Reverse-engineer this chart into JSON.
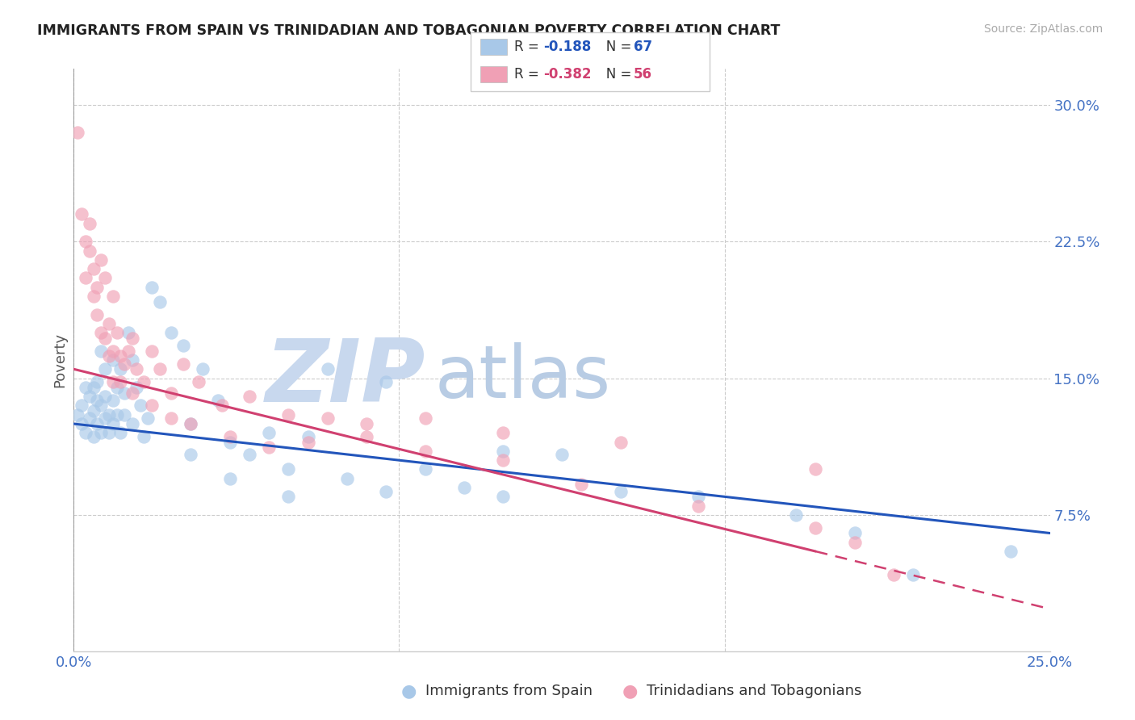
{
  "title": "IMMIGRANTS FROM SPAIN VS TRINIDADIAN AND TOBAGONIAN POVERTY CORRELATION CHART",
  "source": "Source: ZipAtlas.com",
  "ylabel": "Poverty",
  "ytick_vals": [
    0.075,
    0.15,
    0.225,
    0.3
  ],
  "ytick_labels": [
    "7.5%",
    "15.0%",
    "22.5%",
    "30.0%"
  ],
  "xtick_vals": [
    0.0,
    0.25
  ],
  "xtick_labels": [
    "0.0%",
    "25.0%"
  ],
  "xlim": [
    0.0,
    0.25
  ],
  "ylim": [
    0.0,
    0.32
  ],
  "color_blue": "#a8c8e8",
  "color_pink": "#f0a0b5",
  "line_blue": "#2255bb",
  "line_pink": "#d04070",
  "watermark_zip_color": "#c8d8ee",
  "watermark_atlas_color": "#b8cce4",
  "legend_R1": "-0.188",
  "legend_N1": "67",
  "legend_R2": "-0.382",
  "legend_N2": "56",
  "footer_label1": "Immigrants from Spain",
  "footer_label2": "Trinidadians and Tobagonians",
  "blue_line_x0": 0.0,
  "blue_line_y0": 0.125,
  "blue_line_x1": 0.25,
  "blue_line_y1": 0.065,
  "pink_line_x0": 0.0,
  "pink_line_y0": 0.155,
  "pink_line_x1": 0.19,
  "pink_line_y1": 0.055,
  "blue_x": [
    0.001,
    0.002,
    0.002,
    0.003,
    0.003,
    0.004,
    0.004,
    0.005,
    0.005,
    0.005,
    0.006,
    0.006,
    0.006,
    0.007,
    0.007,
    0.007,
    0.008,
    0.008,
    0.008,
    0.009,
    0.009,
    0.01,
    0.01,
    0.01,
    0.011,
    0.011,
    0.012,
    0.012,
    0.013,
    0.013,
    0.014,
    0.015,
    0.015,
    0.016,
    0.017,
    0.018,
    0.019,
    0.02,
    0.022,
    0.025,
    0.028,
    0.03,
    0.033,
    0.037,
    0.04,
    0.045,
    0.05,
    0.055,
    0.06,
    0.07,
    0.08,
    0.09,
    0.1,
    0.11,
    0.125,
    0.14,
    0.16,
    0.185,
    0.03,
    0.04,
    0.055,
    0.065,
    0.08,
    0.11,
    0.2,
    0.215,
    0.24
  ],
  "blue_y": [
    0.13,
    0.125,
    0.135,
    0.12,
    0.145,
    0.128,
    0.14,
    0.118,
    0.132,
    0.145,
    0.125,
    0.138,
    0.148,
    0.12,
    0.135,
    0.165,
    0.128,
    0.14,
    0.155,
    0.13,
    0.12,
    0.125,
    0.138,
    0.16,
    0.13,
    0.145,
    0.12,
    0.155,
    0.13,
    0.142,
    0.175,
    0.125,
    0.16,
    0.145,
    0.135,
    0.118,
    0.128,
    0.2,
    0.192,
    0.175,
    0.168,
    0.125,
    0.155,
    0.138,
    0.115,
    0.108,
    0.12,
    0.1,
    0.118,
    0.095,
    0.088,
    0.1,
    0.09,
    0.085,
    0.108,
    0.088,
    0.085,
    0.075,
    0.108,
    0.095,
    0.085,
    0.155,
    0.148,
    0.11,
    0.065,
    0.042,
    0.055
  ],
  "pink_x": [
    0.001,
    0.002,
    0.003,
    0.003,
    0.004,
    0.004,
    0.005,
    0.005,
    0.006,
    0.006,
    0.007,
    0.007,
    0.008,
    0.008,
    0.009,
    0.009,
    0.01,
    0.01,
    0.011,
    0.012,
    0.012,
    0.013,
    0.014,
    0.015,
    0.016,
    0.018,
    0.02,
    0.022,
    0.025,
    0.028,
    0.032,
    0.038,
    0.045,
    0.055,
    0.065,
    0.075,
    0.09,
    0.11,
    0.14,
    0.19,
    0.01,
    0.015,
    0.02,
    0.025,
    0.03,
    0.04,
    0.05,
    0.06,
    0.075,
    0.09,
    0.11,
    0.13,
    0.16,
    0.19,
    0.2,
    0.21
  ],
  "pink_y": [
    0.285,
    0.24,
    0.225,
    0.205,
    0.235,
    0.22,
    0.21,
    0.195,
    0.2,
    0.185,
    0.175,
    0.215,
    0.172,
    0.205,
    0.18,
    0.162,
    0.165,
    0.195,
    0.175,
    0.162,
    0.148,
    0.158,
    0.165,
    0.172,
    0.155,
    0.148,
    0.165,
    0.155,
    0.142,
    0.158,
    0.148,
    0.135,
    0.14,
    0.13,
    0.128,
    0.118,
    0.128,
    0.12,
    0.115,
    0.1,
    0.148,
    0.142,
    0.135,
    0.128,
    0.125,
    0.118,
    0.112,
    0.115,
    0.125,
    0.11,
    0.105,
    0.092,
    0.08,
    0.068,
    0.06,
    0.042
  ]
}
